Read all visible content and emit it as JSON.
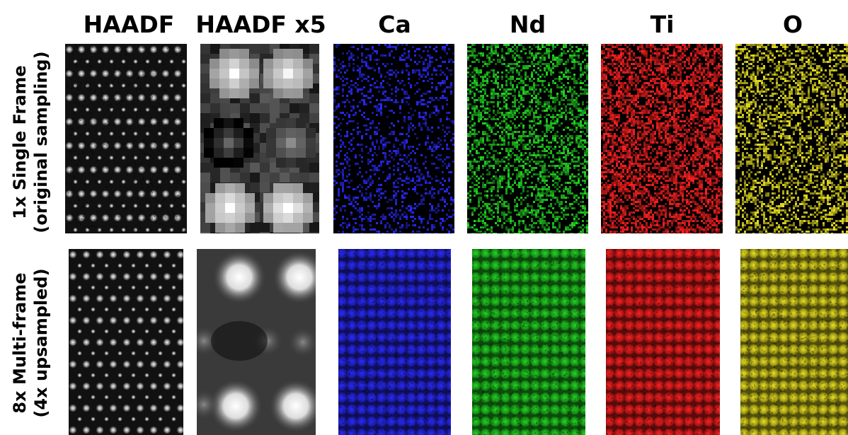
{
  "columns": [
    {
      "title": "HAADF",
      "color": "#ffffff"
    },
    {
      "title": "HAADF x5",
      "color": "#ffffff"
    },
    {
      "title": "Ca",
      "color": "#2a2aff"
    },
    {
      "title": "Nd",
      "color": "#22d622"
    },
    {
      "title": "Ti",
      "color": "#ff2020"
    },
    {
      "title": "O",
      "color": "#e8e020"
    }
  ],
  "rows": [
    {
      "line1": "1x Single Frame",
      "line2": "(original sampling)"
    },
    {
      "line1": "8x Multi-frame",
      "line2": "(4x upsampled)"
    }
  ]
}
